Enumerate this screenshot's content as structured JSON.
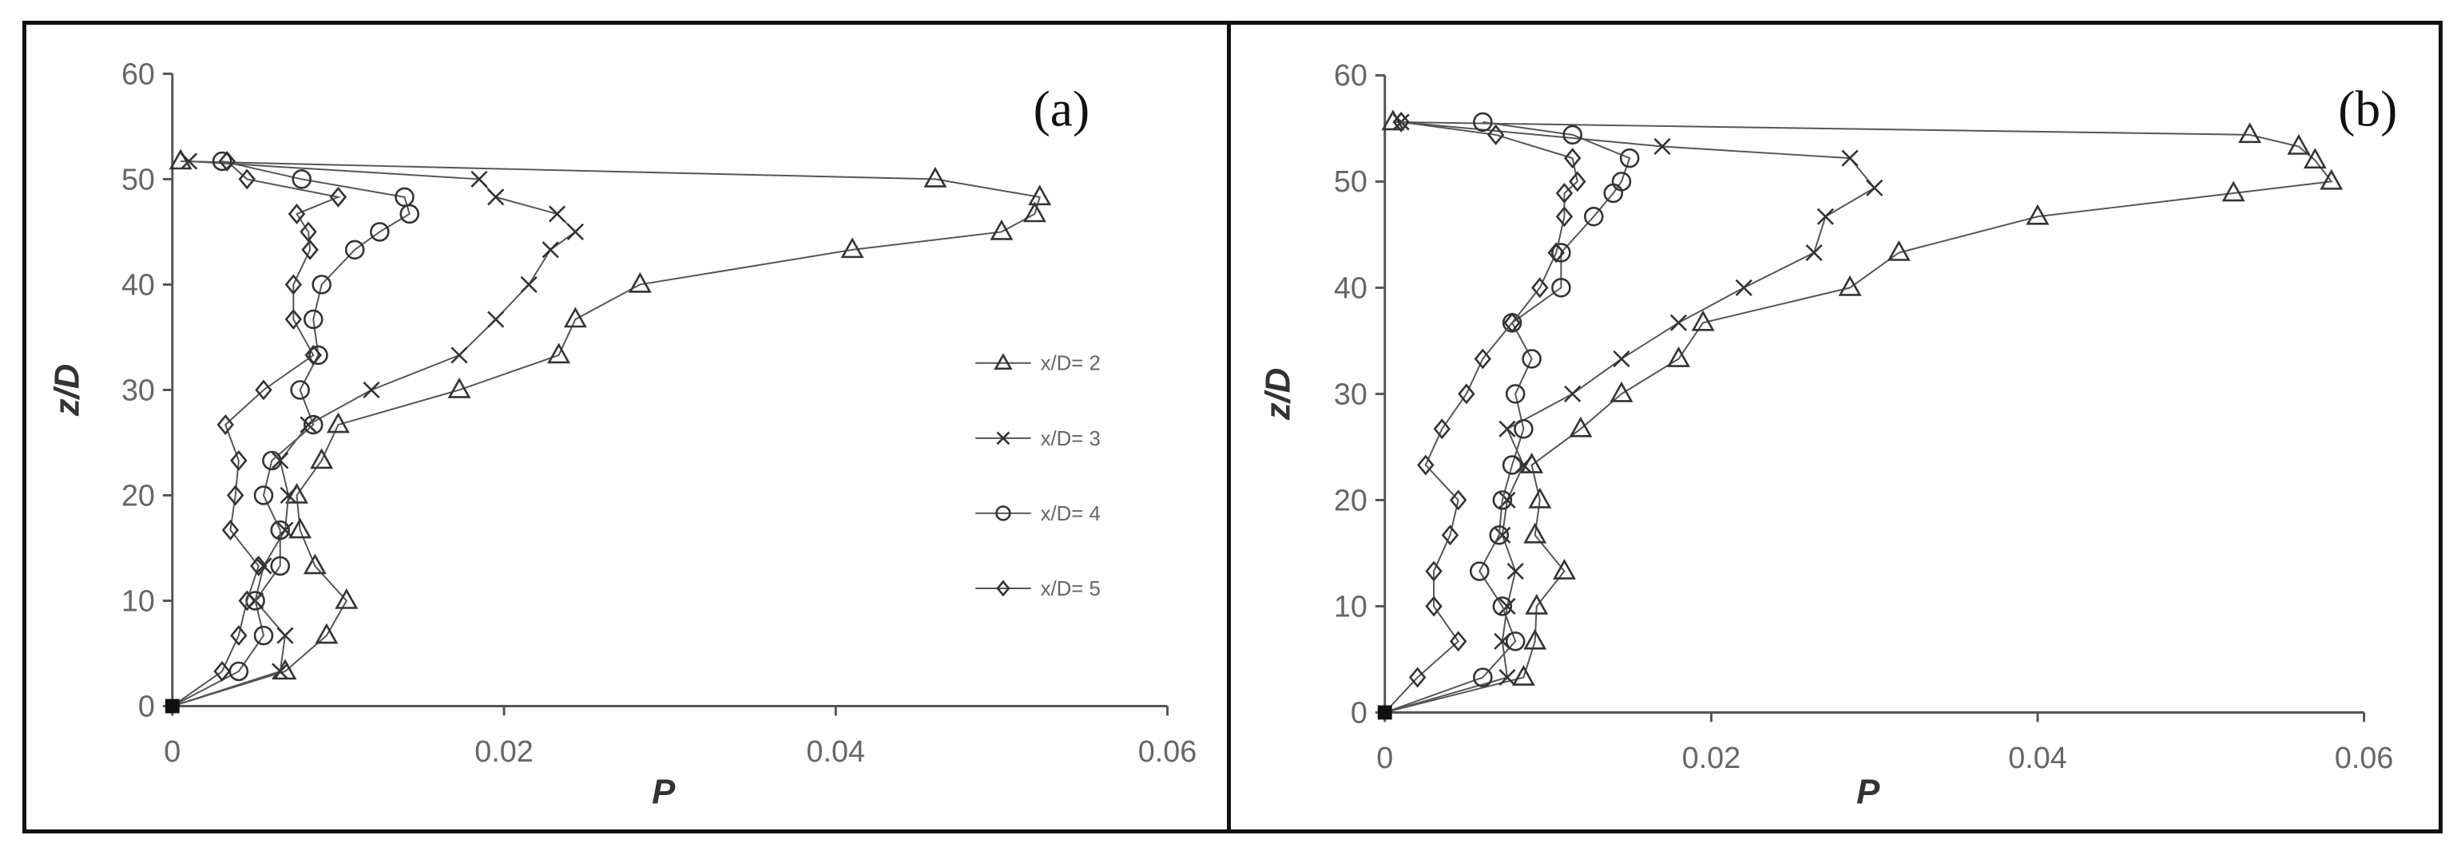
{
  "chart_data": [
    {
      "type": "scatter",
      "panel_label": "(a)",
      "xlabel": "P",
      "ylabel": "z/D",
      "xlim": [
        0,
        0.06
      ],
      "ylim": [
        0,
        60
      ],
      "xticks": [
        "0",
        "0.02",
        "0.04",
        "0.06"
      ],
      "yticks": [
        "0",
        "10",
        "20",
        "30",
        "40",
        "50",
        "60"
      ],
      "grid": false,
      "legend_position": "right",
      "series": [
        {
          "name": "x/D= 2",
          "marker": "triangle",
          "x": [
            0,
            0.0068,
            0.0093,
            0.0105,
            0.0086,
            0.0077,
            0.0075,
            0.009,
            0.01,
            0.0173,
            0.0233,
            0.0243,
            0.0282,
            0.041,
            0.05,
            0.052,
            0.0523,
            0.046,
            0.0005
          ],
          "y": [
            0,
            3.3,
            6.7,
            10,
            13.3,
            16.7,
            20,
            23.3,
            26.7,
            30,
            33.3,
            36.7,
            40,
            43.3,
            45,
            46.7,
            48.3,
            50,
            51.7
          ]
        },
        {
          "name": "x/D= 3",
          "marker": "x",
          "x": [
            0,
            0.0065,
            0.0068,
            0.005,
            0.0055,
            0.0068,
            0.007,
            0.0065,
            0.0082,
            0.012,
            0.0173,
            0.0195,
            0.0215,
            0.0228,
            0.0243,
            0.0232,
            0.0195,
            0.0185,
            0.001
          ],
          "y": [
            0,
            3.3,
            6.7,
            10,
            13.3,
            16.7,
            20,
            23.3,
            26.7,
            30,
            33.3,
            36.7,
            40,
            43.3,
            45,
            46.7,
            48.3,
            50,
            51.7
          ]
        },
        {
          "name": "x/D= 4",
          "marker": "circle",
          "x": [
            0,
            0.004,
            0.0055,
            0.005,
            0.0065,
            0.0065,
            0.0055,
            0.006,
            0.0085,
            0.0077,
            0.0088,
            0.0085,
            0.009,
            0.011,
            0.0125,
            0.0143,
            0.014,
            0.0078,
            0.003
          ],
          "y": [
            0,
            3.3,
            6.7,
            10,
            13.3,
            16.7,
            20,
            23.3,
            26.7,
            30,
            33.3,
            36.7,
            40,
            43.3,
            45,
            46.7,
            48.3,
            50,
            51.7
          ]
        },
        {
          "name": "x/D= 5",
          "marker": "diamond",
          "x": [
            0,
            0.003,
            0.004,
            0.0045,
            0.0052,
            0.0035,
            0.0038,
            0.004,
            0.0032,
            0.0055,
            0.0085,
            0.0073,
            0.0073,
            0.0083,
            0.0082,
            0.0075,
            0.01,
            0.0045,
            0.0033
          ],
          "y": [
            0,
            3.3,
            6.7,
            10,
            13.3,
            16.7,
            20,
            23.3,
            26.7,
            30,
            33.3,
            36.7,
            40,
            43.3,
            45,
            46.7,
            48.3,
            50,
            51.7
          ]
        }
      ]
    },
    {
      "type": "scatter",
      "panel_label": "(b)",
      "xlabel": "P",
      "ylabel": "z/D",
      "xlim": [
        0,
        0.06
      ],
      "ylim": [
        0,
        60
      ],
      "xticks": [
        "0",
        "0.02",
        "0.04",
        "0.06"
      ],
      "yticks": [
        "0",
        "10",
        "20",
        "30",
        "40",
        "50",
        "60"
      ],
      "grid": false,
      "series": [
        {
          "name": "x/D= 2",
          "marker": "triangle",
          "x": [
            0,
            0.0085,
            0.0092,
            0.0093,
            0.011,
            0.0092,
            0.0095,
            0.009,
            0.012,
            0.0145,
            0.018,
            0.0195,
            0.0285,
            0.0315,
            0.04,
            0.052,
            0.058,
            0.057,
            0.056,
            0.053,
            0.0005
          ],
          "y": [
            0,
            3.3,
            6.7,
            10,
            13.3,
            16.7,
            20,
            23.3,
            26.7,
            30,
            33.3,
            36.7,
            40,
            43.3,
            46.7,
            48.9,
            50,
            52,
            53.3,
            54.4,
            55.6
          ]
        },
        {
          "name": "x/D= 3",
          "marker": "x",
          "x": [
            0,
            0.0075,
            0.0072,
            0.0075,
            0.008,
            0.0072,
            0.0075,
            0.0085,
            0.0075,
            0.0115,
            0.0145,
            0.018,
            0.022,
            0.0263,
            0.027,
            0.03,
            0.0285,
            0.017,
            0.001
          ],
          "y": [
            0,
            3.3,
            6.7,
            10,
            13.3,
            16.7,
            20,
            23.3,
            26.7,
            30,
            33.3,
            36.7,
            40,
            43.3,
            46.7,
            49.4,
            52.2,
            53.3,
            55.6
          ]
        },
        {
          "name": "x/D= 4",
          "marker": "circle",
          "x": [
            0,
            0.006,
            0.008,
            0.0072,
            0.0058,
            0.007,
            0.0072,
            0.0078,
            0.0085,
            0.008,
            0.009,
            0.0078,
            0.0108,
            0.0108,
            0.0128,
            0.014,
            0.0145,
            0.015,
            0.0115,
            0.006
          ],
          "y": [
            0,
            3.3,
            6.7,
            10,
            13.3,
            16.7,
            20,
            23.3,
            26.7,
            30,
            33.3,
            36.7,
            40,
            43.3,
            46.7,
            48.9,
            50,
            52.2,
            54.4,
            55.6
          ]
        },
        {
          "name": "x/D= 5",
          "marker": "diamond",
          "x": [
            0,
            0.002,
            0.0045,
            0.003,
            0.003,
            0.004,
            0.0045,
            0.0025,
            0.0035,
            0.005,
            0.006,
            0.0078,
            0.0095,
            0.0105,
            0.011,
            0.011,
            0.0118,
            0.0115,
            0.0068,
            0.001
          ],
          "y": [
            0,
            3.3,
            6.7,
            10,
            13.3,
            16.7,
            20,
            23.3,
            26.7,
            30,
            33.3,
            36.7,
            40,
            43.3,
            46.7,
            48.9,
            50,
            52.2,
            54.4,
            55.6
          ]
        }
      ]
    }
  ]
}
